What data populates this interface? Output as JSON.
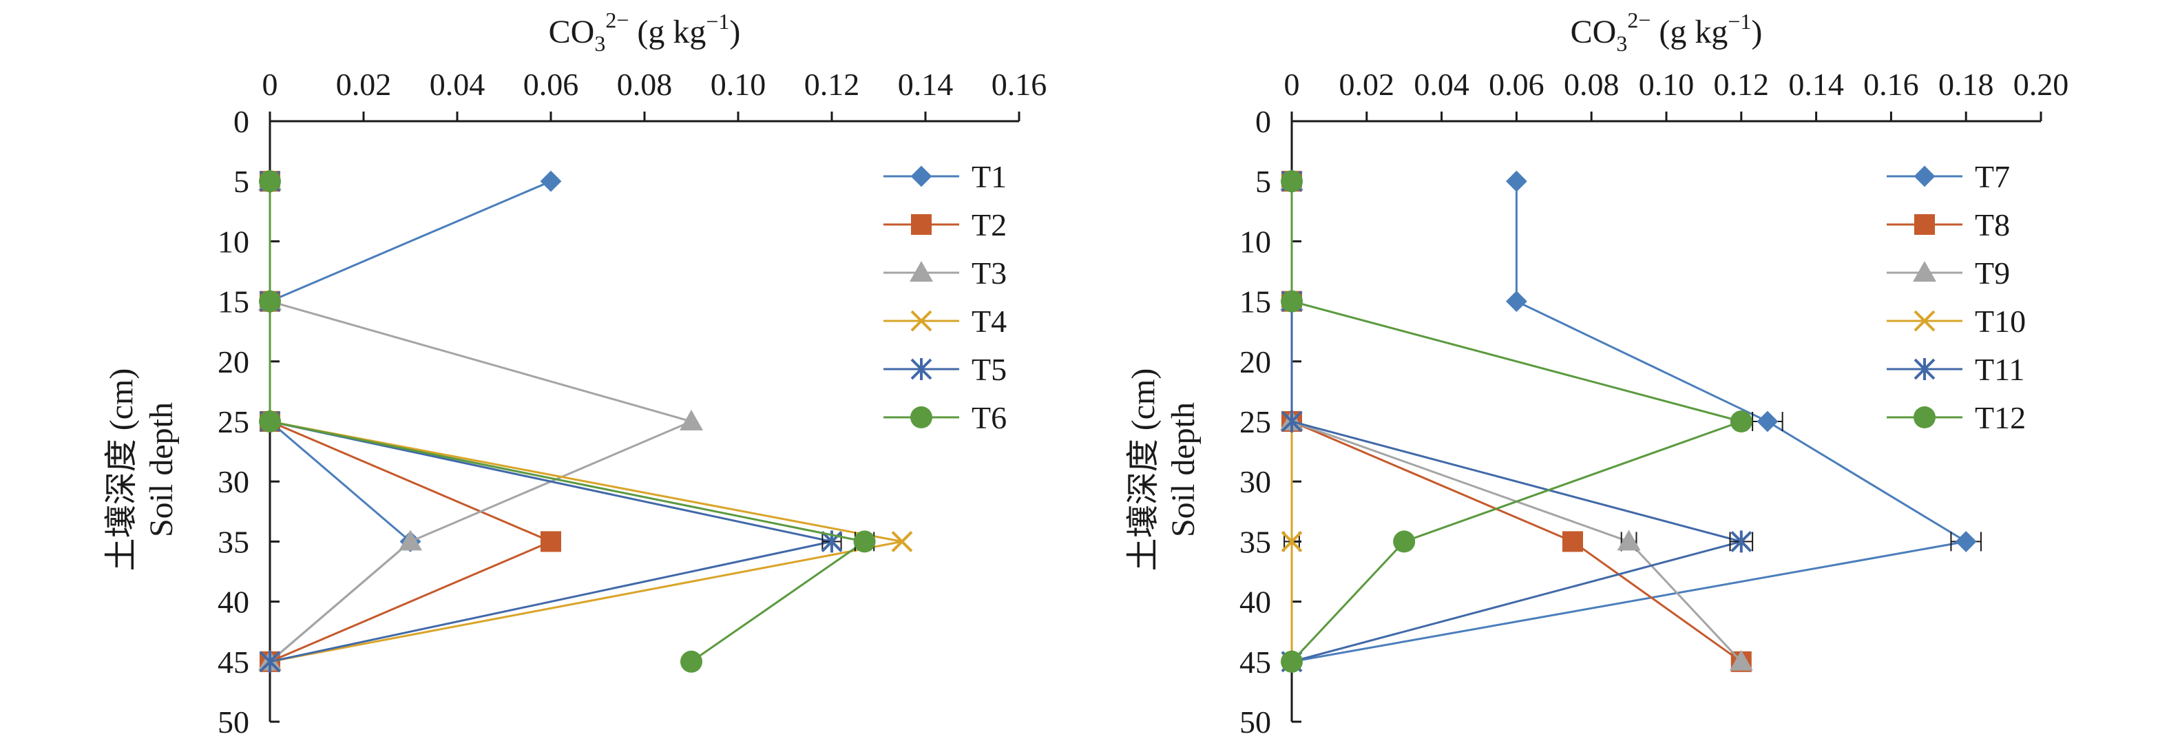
{
  "chart_data": [
    {
      "type": "line",
      "x_axis_label_parts": {
        "base": "CO",
        "sub": "3",
        "sup": "2−",
        "unit": " (g kg",
        "unit_sup": "−1",
        "unit_close": ")"
      },
      "y_axis_label_lines": [
        "土壤深度 (cm)",
        "Soil depth"
      ],
      "x_range": [
        0,
        0.16
      ],
      "x_ticks": [
        "0",
        "0.02",
        "0.04",
        "0.06",
        "0.08",
        "0.10",
        "0.12",
        "0.14",
        "0.16"
      ],
      "x_tick_values": [
        0,
        0.02,
        0.04,
        0.06,
        0.08,
        0.1,
        0.12,
        0.14,
        0.16
      ],
      "y_range": [
        0,
        50
      ],
      "y_ticks": [
        "0",
        "5",
        "10",
        "15",
        "20",
        "25",
        "30",
        "35",
        "40",
        "45",
        "50"
      ],
      "y_tick_values": [
        0,
        5,
        10,
        15,
        20,
        25,
        30,
        35,
        40,
        45,
        50
      ],
      "y_reversed": true,
      "x_axis_position": "top",
      "grid": false,
      "legend_position": "right",
      "series": [
        {
          "name": "T1",
          "color": "#4a7ebb",
          "marker": "diamond",
          "depth": [
            5,
            15,
            25,
            35,
            45
          ],
          "values": [
            0.06,
            0,
            0,
            0.03,
            0
          ],
          "error": [
            0,
            0,
            0,
            0,
            0
          ]
        },
        {
          "name": "T2",
          "color": "#c55a2c",
          "marker": "square",
          "depth": [
            5,
            15,
            25,
            35,
            45
          ],
          "values": [
            0,
            0,
            0,
            0.06,
            0
          ],
          "error": [
            0,
            0,
            0,
            0,
            0
          ]
        },
        {
          "name": "T3",
          "color": "#a5a5a5",
          "marker": "triangle",
          "depth": [
            5,
            15,
            25,
            35,
            45
          ],
          "values": [
            0,
            0,
            0.09,
            0.03,
            0
          ],
          "error": [
            0,
            0,
            0,
            0,
            0
          ]
        },
        {
          "name": "T4",
          "color": "#d9a429",
          "marker": "x",
          "depth": [
            5,
            15,
            25,
            35,
            45
          ],
          "values": [
            0,
            0,
            0,
            0.135,
            0
          ],
          "error": [
            0,
            0,
            0,
            0,
            0
          ]
        },
        {
          "name": "T5",
          "color": "#4169a8",
          "marker": "star",
          "depth": [
            5,
            15,
            25,
            35,
            45
          ],
          "values": [
            0,
            0,
            0,
            0.12,
            0
          ],
          "error": [
            0,
            0,
            0,
            0.002,
            0
          ]
        },
        {
          "name": "T6",
          "color": "#5b9a3f",
          "marker": "circle",
          "depth": [
            5,
            15,
            25,
            35,
            45
          ],
          "values": [
            0,
            0,
            0,
            0.127,
            0.09
          ],
          "error": [
            0,
            0,
            0,
            0.002,
            0
          ]
        }
      ]
    },
    {
      "type": "line",
      "x_axis_label_parts": {
        "base": "CO",
        "sub": "3",
        "sup": "2−",
        "unit": " (g kg",
        "unit_sup": "−1",
        "unit_close": ")"
      },
      "y_axis_label_lines": [
        "土壤深度 (cm)",
        "Soil depth"
      ],
      "x_range": [
        0,
        0.2
      ],
      "x_ticks": [
        "0",
        "0.02",
        "0.04",
        "0.06",
        "0.08",
        "0.10",
        "0.12",
        "0.14",
        "0.16",
        "0.18",
        "0.20"
      ],
      "x_tick_values": [
        0,
        0.02,
        0.04,
        0.06,
        0.08,
        0.1,
        0.12,
        0.14,
        0.16,
        0.18,
        0.2
      ],
      "y_range": [
        0,
        50
      ],
      "y_ticks": [
        "0",
        "5",
        "10",
        "15",
        "20",
        "25",
        "30",
        "35",
        "40",
        "45",
        "50"
      ],
      "y_tick_values": [
        0,
        5,
        10,
        15,
        20,
        25,
        30,
        35,
        40,
        45,
        50
      ],
      "y_reversed": true,
      "x_axis_position": "top",
      "grid": false,
      "legend_position": "right",
      "series": [
        {
          "name": "T7",
          "color": "#4a7ebb",
          "marker": "diamond",
          "depth": [
            5,
            15,
            25,
            35,
            45
          ],
          "values": [
            0.06,
            0.06,
            0.127,
            0.18,
            0
          ],
          "error": [
            0,
            0,
            0.004,
            0.004,
            0
          ]
        },
        {
          "name": "T8",
          "color": "#c55a2c",
          "marker": "square",
          "depth": [
            5,
            15,
            25,
            35,
            45
          ],
          "values": [
            0,
            0,
            0,
            0.075,
            0.12
          ],
          "error": [
            0,
            0,
            0,
            0,
            0
          ]
        },
        {
          "name": "T9",
          "color": "#a5a5a5",
          "marker": "triangle",
          "depth": [
            5,
            15,
            25,
            35,
            45
          ],
          "values": [
            0,
            0,
            0,
            0.09,
            0.12
          ],
          "error": [
            0,
            0,
            0,
            0.002,
            0
          ]
        },
        {
          "name": "T10",
          "color": "#d9a429",
          "marker": "x",
          "depth": [
            5,
            15,
            25,
            35,
            45
          ],
          "values": [
            0,
            0,
            0,
            0,
            0
          ],
          "error": [
            0,
            0,
            0,
            0.002,
            0
          ]
        },
        {
          "name": "T11",
          "color": "#4169a8",
          "marker": "star",
          "depth": [
            5,
            15,
            25,
            35,
            45
          ],
          "values": [
            0,
            0,
            0,
            0.12,
            0
          ],
          "error": [
            0,
            0,
            0,
            0.003,
            0
          ]
        },
        {
          "name": "T12",
          "color": "#5b9a3f",
          "marker": "circle",
          "depth": [
            5,
            15,
            25,
            35,
            45
          ],
          "values": [
            0,
            0,
            0.12,
            0.03,
            0
          ],
          "error": [
            0,
            0,
            0,
            0,
            0
          ]
        }
      ]
    }
  ]
}
